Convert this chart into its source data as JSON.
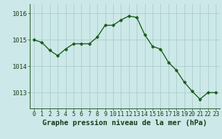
{
  "x": [
    0,
    1,
    2,
    3,
    4,
    5,
    6,
    7,
    8,
    9,
    10,
    11,
    12,
    13,
    14,
    15,
    16,
    17,
    18,
    19,
    20,
    21,
    22,
    23
  ],
  "y": [
    1015.0,
    1014.9,
    1014.6,
    1014.4,
    1014.65,
    1014.85,
    1014.85,
    1014.85,
    1015.1,
    1015.55,
    1015.55,
    1015.75,
    1015.9,
    1015.85,
    1015.2,
    1014.75,
    1014.65,
    1014.15,
    1013.85,
    1013.4,
    1013.05,
    1012.75,
    1013.0,
    1013.0
  ],
  "line_color": "#1a5c1a",
  "marker_color": "#1a5c1a",
  "background_color": "#cce8e8",
  "grid_color": "#aacccc",
  "xlabel": "Graphe pression niveau de la mer (hPa)",
  "xlabel_fontsize": 7.5,
  "yticks": [
    1013,
    1014,
    1015,
    1016
  ],
  "xticks": [
    0,
    1,
    2,
    3,
    4,
    5,
    6,
    7,
    8,
    9,
    10,
    11,
    12,
    13,
    14,
    15,
    16,
    17,
    18,
    19,
    20,
    21,
    22,
    23
  ],
  "ylim": [
    1012.4,
    1016.35
  ],
  "xlim": [
    -0.5,
    23.5
  ],
  "ytick_fontsize": 6.5,
  "xtick_fontsize": 6.0,
  "line_width": 1.0,
  "marker_size": 2.5
}
